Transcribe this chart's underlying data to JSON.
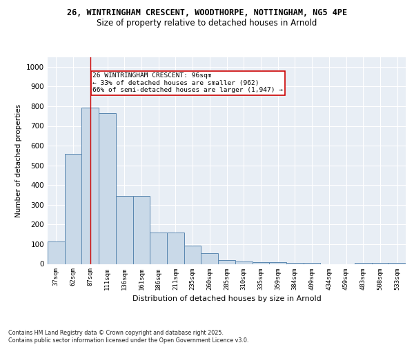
{
  "title_line1": "26, WINTRINGHAM CRESCENT, WOODTHORPE, NOTTINGHAM, NG5 4PE",
  "title_line2": "Size of property relative to detached houses in Arnold",
  "xlabel": "Distribution of detached houses by size in Arnold",
  "ylabel": "Number of detached properties",
  "categories": [
    "37sqm",
    "62sqm",
    "87sqm",
    "111sqm",
    "136sqm",
    "161sqm",
    "186sqm",
    "211sqm",
    "235sqm",
    "260sqm",
    "285sqm",
    "310sqm",
    "335sqm",
    "359sqm",
    "384sqm",
    "409sqm",
    "434sqm",
    "459sqm",
    "483sqm",
    "508sqm",
    "533sqm"
  ],
  "values": [
    113,
    560,
    793,
    766,
    345,
    345,
    160,
    160,
    93,
    55,
    20,
    13,
    10,
    10,
    5,
    5,
    0,
    0,
    5,
    5,
    5
  ],
  "bar_color": "#c9d9e8",
  "bar_edge_color": "#5a87b0",
  "red_line_index": 2,
  "annotation_text": "26 WINTRINGHAM CRESCENT: 96sqm\n← 33% of detached houses are smaller (962)\n66% of semi-detached houses are larger (1,947) →",
  "annotation_box_color": "#ffffff",
  "annotation_box_edge_color": "#cc0000",
  "footnote": "Contains HM Land Registry data © Crown copyright and database right 2025.\nContains public sector information licensed under the Open Government Licence v3.0.",
  "ylim": [
    0,
    1050
  ],
  "yticks": [
    0,
    100,
    200,
    300,
    400,
    500,
    600,
    700,
    800,
    900,
    1000
  ],
  "background_color": "#e8eef5",
  "grid_color": "#ffffff",
  "title1_fontsize": 8.5,
  "title2_fontsize": 8.5
}
